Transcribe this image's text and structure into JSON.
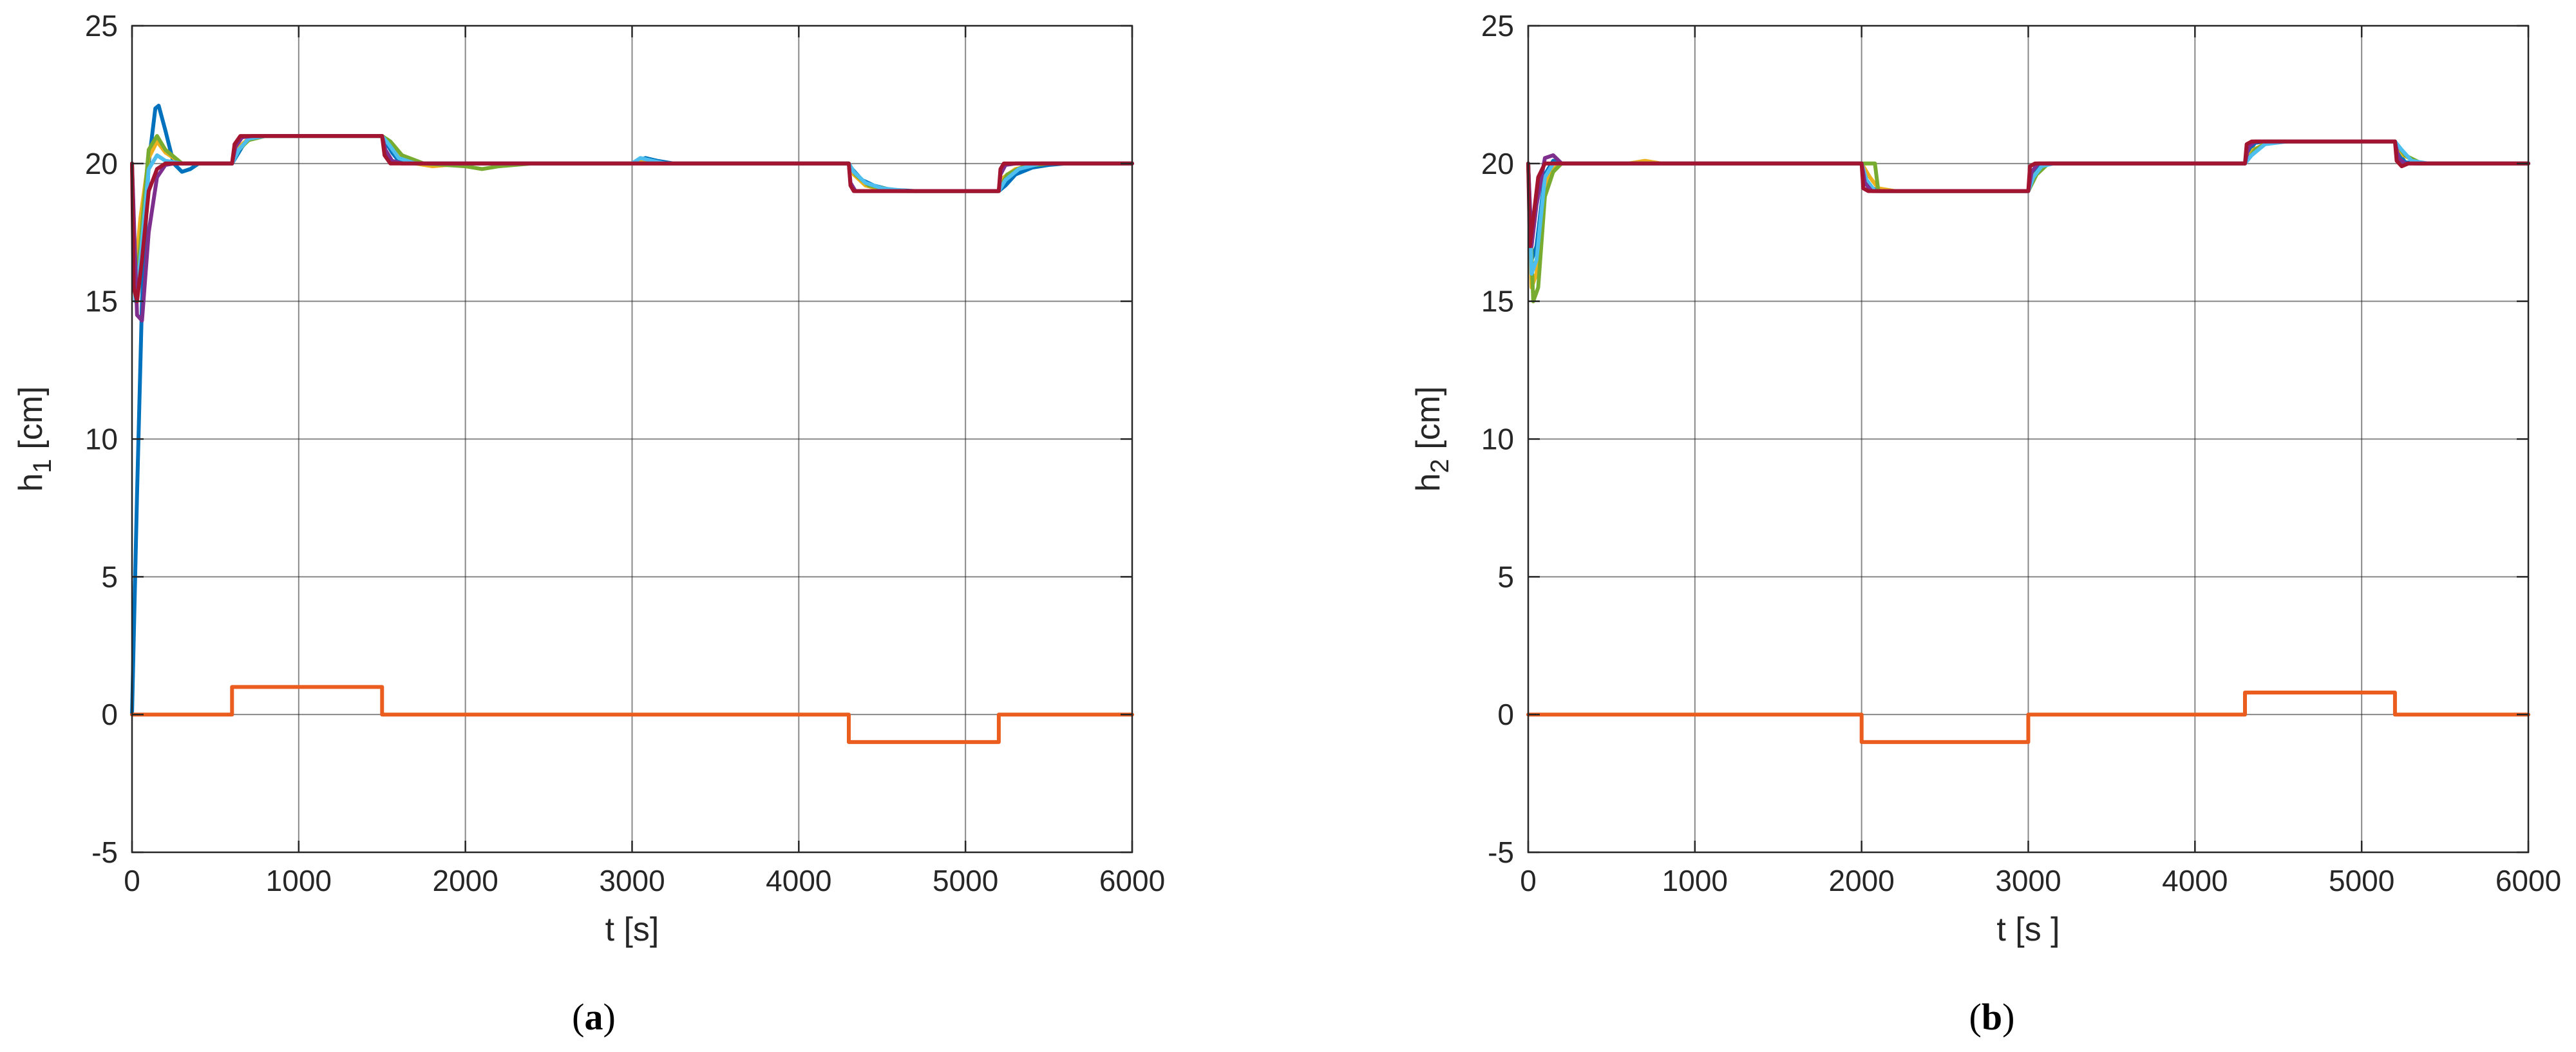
{
  "chart_data": [
    {
      "type": "line",
      "caption": "(a)",
      "xlabel": "t [s]",
      "ylabel_main": "h",
      "ylabel_sub": "1",
      "ylabel_unit": " [cm]",
      "xlim": [
        0,
        6000
      ],
      "ylim": [
        -5,
        25
      ],
      "xticks": [
        0,
        1000,
        2000,
        3000,
        4000,
        5000,
        6000
      ],
      "yticks": [
        -5,
        0,
        5,
        10,
        15,
        20,
        25
      ],
      "grid": true,
      "series": [
        {
          "color": "#0072BD",
          "x": [
            0,
            30,
            60,
            100,
            140,
            160,
            200,
            250,
            300,
            350,
            400,
            500,
            600,
            620,
            660,
            700,
            800,
            1000,
            1500,
            1520,
            1560,
            1600,
            1700,
            2000,
            3000,
            3080,
            3150,
            3250,
            4300,
            4320,
            4380,
            4450,
            4550,
            4700,
            5200,
            5240,
            5300,
            5400,
            5500,
            5600,
            6000
          ],
          "y": [
            0,
            8,
            15,
            20,
            22,
            22.1,
            21.2,
            20.0,
            19.7,
            19.8,
            20.0,
            20.0,
            20.0,
            20.2,
            20.6,
            20.9,
            21.0,
            21.0,
            21.0,
            20.8,
            20.4,
            20.1,
            20.0,
            20.0,
            20.0,
            20.2,
            20.1,
            20.0,
            20.0,
            19.8,
            19.4,
            19.2,
            19.05,
            19.0,
            19.0,
            19.2,
            19.6,
            19.85,
            19.95,
            20.0,
            20.0
          ]
        },
        {
          "color": "#EDB120",
          "x": [
            0,
            20,
            50,
            100,
            150,
            200,
            300,
            600,
            640,
            700,
            800,
            1500,
            1540,
            1600,
            1700,
            1800,
            2000,
            3000,
            3050,
            3150,
            4300,
            4330,
            4400,
            4500,
            4650,
            5200,
            5230,
            5300,
            5450,
            6000
          ],
          "y": [
            20,
            16,
            18,
            20.2,
            20.8,
            20.4,
            20.0,
            20.0,
            20.6,
            20.9,
            21.0,
            21.0,
            20.8,
            20.3,
            20.0,
            19.9,
            20.0,
            20.0,
            20.1,
            20.0,
            20.0,
            19.6,
            19.2,
            19.05,
            19.0,
            19.0,
            19.5,
            19.8,
            20.0,
            20.0
          ]
        },
        {
          "color": "#77AC30",
          "x": [
            0,
            20,
            50,
            100,
            150,
            200,
            300,
            600,
            640,
            700,
            800,
            1500,
            1550,
            1620,
            1750,
            2000,
            2100,
            2200,
            2400,
            3000,
            4300,
            4340,
            4420,
            4600,
            5200,
            5250,
            5350,
            5500,
            6000
          ],
          "y": [
            20,
            15.5,
            17,
            20.5,
            21.0,
            20.5,
            20.0,
            20.0,
            20.5,
            20.85,
            21.0,
            21.0,
            20.8,
            20.3,
            20.0,
            19.9,
            19.8,
            19.9,
            20.0,
            20.0,
            20.0,
            19.6,
            19.2,
            19.0,
            19.0,
            19.6,
            19.9,
            20.0,
            20.0
          ]
        },
        {
          "color": "#4DBEEE",
          "x": [
            0,
            20,
            50,
            100,
            150,
            200,
            300,
            600,
            640,
            700,
            800,
            1500,
            1540,
            1600,
            1700,
            2000,
            3000,
            3050,
            3120,
            3200,
            4300,
            4330,
            4400,
            4500,
            4650,
            5200,
            5240,
            5320,
            5450,
            6000
          ],
          "y": [
            20,
            15,
            16.5,
            19.8,
            20.3,
            20.1,
            20.0,
            20.0,
            20.5,
            20.9,
            21.0,
            21.0,
            20.7,
            20.2,
            20.0,
            20.0,
            20.0,
            20.2,
            20.1,
            20.0,
            20.0,
            19.7,
            19.3,
            19.1,
            19.0,
            19.0,
            19.4,
            19.8,
            20.0,
            20.0
          ]
        },
        {
          "color": "#7E2F8E",
          "x": [
            0,
            30,
            60,
            100,
            150,
            200,
            250,
            600,
            620,
            660,
            720,
            1500,
            1520,
            1560,
            1620,
            2000,
            4300,
            4310,
            4340,
            4400,
            5200,
            5210,
            5240,
            5300,
            6000
          ],
          "y": [
            20,
            14.5,
            14.3,
            17.5,
            19.5,
            19.95,
            20.0,
            20.0,
            20.6,
            20.95,
            21.0,
            21.0,
            20.5,
            20.1,
            20.0,
            20.0,
            20.0,
            19.3,
            19.0,
            19.0,
            19.0,
            19.6,
            19.95,
            20.0,
            20.0
          ]
        },
        {
          "color": "#A2142F",
          "x": [
            0,
            10,
            30,
            60,
            100,
            150,
            200,
            600,
            615,
            650,
            700,
            1500,
            1515,
            1550,
            1600,
            2000,
            4300,
            4310,
            4330,
            4380,
            5200,
            5210,
            5230,
            5280,
            6000
          ],
          "y": [
            20,
            15.5,
            15.0,
            16.5,
            19.0,
            19.8,
            20.0,
            20.0,
            20.7,
            21.0,
            21.0,
            21.0,
            20.3,
            20.0,
            20.0,
            20.0,
            20.0,
            19.2,
            19.0,
            19.0,
            19.0,
            19.8,
            20.0,
            20.0,
            20.0
          ]
        },
        {
          "color": "#EA5D1E",
          "x": [
            0,
            600,
            600,
            1500,
            1500,
            4300,
            4300,
            5200,
            5200,
            6000
          ],
          "y": [
            0,
            0,
            1,
            1,
            0,
            0,
            -1,
            -1,
            0,
            0
          ]
        }
      ]
    },
    {
      "type": "line",
      "caption": "(b)",
      "xlabel": "t [s ]",
      "ylabel_main": "h",
      "ylabel_sub": "2",
      "ylabel_unit": " [cm]",
      "xlim": [
        0,
        6000
      ],
      "ylim": [
        -5,
        25
      ],
      "xticks": [
        0,
        1000,
        2000,
        3000,
        4000,
        5000,
        6000
      ],
      "yticks": [
        -5,
        0,
        5,
        10,
        15,
        20,
        25
      ],
      "grid": true,
      "series": [
        {
          "color": "#0072BD",
          "x": [
            0,
            20,
            50,
            100,
            150,
            200,
            300,
            2000,
            2020,
            2060,
            2120,
            3000,
            3020,
            3060,
            3120,
            4300,
            4320,
            4360,
            4420,
            5200,
            5220,
            5260,
            5320,
            6000
          ],
          "y": [
            20,
            16.5,
            17.0,
            19.6,
            20.1,
            20.0,
            20.0,
            20.0,
            19.5,
            19.1,
            19.0,
            19.0,
            19.5,
            19.9,
            20.0,
            20.0,
            20.4,
            20.75,
            20.8,
            20.8,
            20.4,
            20.05,
            20.0,
            20.0
          ]
        },
        {
          "color": "#EDB120",
          "x": [
            0,
            20,
            50,
            100,
            150,
            200,
            300,
            600,
            700,
            800,
            2000,
            2050,
            2100,
            2200,
            3000,
            3040,
            3100,
            4300,
            4350,
            4450,
            5200,
            5250,
            5350,
            6000
          ],
          "y": [
            20,
            15.5,
            16.0,
            19.2,
            19.8,
            20.0,
            20.0,
            20.0,
            20.1,
            20.0,
            20.0,
            19.5,
            19.1,
            19.0,
            19.0,
            19.6,
            20.0,
            20.0,
            20.5,
            20.8,
            20.8,
            20.3,
            20.0,
            20.0
          ]
        },
        {
          "color": "#77AC30",
          "x": [
            0,
            30,
            60,
            100,
            150,
            200,
            300,
            2000,
            2080,
            2100,
            2200,
            3000,
            3050,
            3120,
            4300,
            4360,
            4450,
            5200,
            5260,
            5360,
            6000
          ],
          "y": [
            20,
            15.0,
            15.5,
            18.8,
            19.7,
            20.0,
            20.0,
            20.0,
            20.0,
            19.0,
            19.0,
            19.0,
            19.6,
            20.0,
            20.0,
            20.5,
            20.8,
            20.8,
            20.3,
            20.0,
            20.0
          ]
        },
        {
          "color": "#4DBEEE",
          "x": [
            0,
            20,
            50,
            100,
            150,
            200,
            2000,
            2030,
            2080,
            2150,
            3000,
            3030,
            3080,
            3150,
            4300,
            4340,
            4420,
            4550,
            5200,
            5240,
            5300,
            5400,
            6000
          ],
          "y": [
            20,
            16.0,
            16.5,
            19.5,
            20.0,
            20.0,
            20.0,
            19.4,
            19.0,
            19.0,
            19.0,
            19.5,
            19.9,
            20.0,
            20.0,
            20.3,
            20.7,
            20.8,
            20.8,
            20.5,
            20.1,
            20.0,
            20.0
          ]
        },
        {
          "color": "#7E2F8E",
          "x": [
            0,
            20,
            50,
            100,
            150,
            200,
            300,
            2000,
            2020,
            2060,
            3000,
            3020,
            3060,
            4300,
            4320,
            4360,
            5200,
            5220,
            5260,
            6000
          ],
          "y": [
            20,
            17.0,
            18.5,
            20.2,
            20.3,
            20.0,
            20.0,
            20.0,
            19.3,
            19.0,
            19.0,
            19.7,
            20.0,
            20.0,
            20.6,
            20.8,
            20.8,
            20.2,
            20.0,
            20.0
          ]
        },
        {
          "color": "#A2142F",
          "x": [
            0,
            10,
            30,
            60,
            100,
            150,
            2000,
            2010,
            2040,
            3000,
            3010,
            3040,
            4300,
            4310,
            4340,
            5200,
            5210,
            5240,
            5280,
            6000
          ],
          "y": [
            20,
            17.0,
            18.0,
            19.5,
            20.0,
            20.0,
            20.0,
            19.1,
            19.0,
            19.0,
            19.9,
            20.0,
            20.0,
            20.7,
            20.8,
            20.8,
            20.1,
            19.9,
            20.0,
            20.0
          ]
        },
        {
          "color": "#EA5D1E",
          "x": [
            0,
            2000,
            2000,
            3000,
            3000,
            4300,
            4300,
            5200,
            5200,
            6000
          ],
          "y": [
            0,
            0,
            -1,
            -1,
            0,
            0,
            0.8,
            0.8,
            0,
            0
          ]
        }
      ]
    }
  ]
}
